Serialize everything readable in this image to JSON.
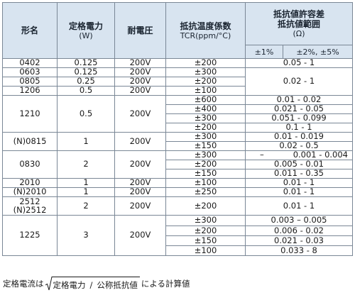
{
  "headers": {
    "name": "形名",
    "power": "定格電力",
    "power_unit": "(W)",
    "voltage": "耐電圧",
    "tcr": "抵抗温度係数",
    "tcr_unit": "TCR(ppm/°C)",
    "range_l1": "抵抗値許容差",
    "range_l2": "抵抗値範囲",
    "range_unit": "(Ω)",
    "tol_1": "±1%",
    "tol_2": "±2%, ±5%"
  },
  "rows": [
    {
      "name": "0402",
      "power": "0.125",
      "voltage": "200V",
      "tcr": "±200",
      "range": "0.05 - 1"
    },
    {
      "name": "0603",
      "power": "0.125",
      "voltage": "200V",
      "tcr": "±300"
    },
    {
      "name": "0805",
      "power": "0.25",
      "voltage": "200V",
      "tcr": "±200",
      "range": "0.02 - 1"
    },
    {
      "name": "1206",
      "power": "0.5",
      "voltage": "200V",
      "tcr": "±100"
    },
    {
      "name": "1210",
      "power": "0.5",
      "voltage": "200V",
      "tcrs": [
        "±600",
        "±400",
        "±300",
        "±200"
      ],
      "ranges": [
        "0.01 - 0.02",
        "0.021 - 0.05",
        "0.051 - 0.099",
        "0.1 - 1"
      ]
    },
    {
      "name": "(N)0815",
      "power": "1",
      "voltage": "200V",
      "tcrs": [
        "±300",
        "±150"
      ],
      "ranges": [
        "0.01 - 0.019",
        "0.02 - 0.5"
      ]
    },
    {
      "name": "0830",
      "power": "2",
      "voltage": "200V",
      "tcrs": [
        "±300",
        "±200",
        "±150"
      ],
      "tol1_first": "–",
      "ranges": [
        "0.001 - 0.004",
        "0.005 - 0.01",
        "0.011 - 0.35"
      ]
    },
    {
      "name": "2010",
      "power": "1",
      "voltage": "200V",
      "tcr": "±100",
      "range": "0.01 - 1"
    },
    {
      "name": "(N)2010",
      "power": "1",
      "voltage": "200V",
      "tcr": "±250",
      "range": "0.01 - 1"
    },
    {
      "name_l1": "2512",
      "name_l2": "(N)2512",
      "power": "2",
      "voltage": "200V",
      "tcr": "±200",
      "range": "0.01 - 1"
    },
    {
      "name": "1225",
      "power": "3",
      "voltage": "200V",
      "tcrs": [
        "±300",
        "±200",
        "±150",
        "±100"
      ],
      "ranges": [
        "0.003 – 0.005",
        "0.006 - 0.02",
        "0.021 - 0.03",
        "0.033 - 8"
      ]
    }
  ],
  "footer": {
    "prefix": "定格電流は",
    "numerator": "定格電力",
    "slash": "/",
    "denominator": "公称抵抗値",
    "suffix": "による計算値"
  }
}
